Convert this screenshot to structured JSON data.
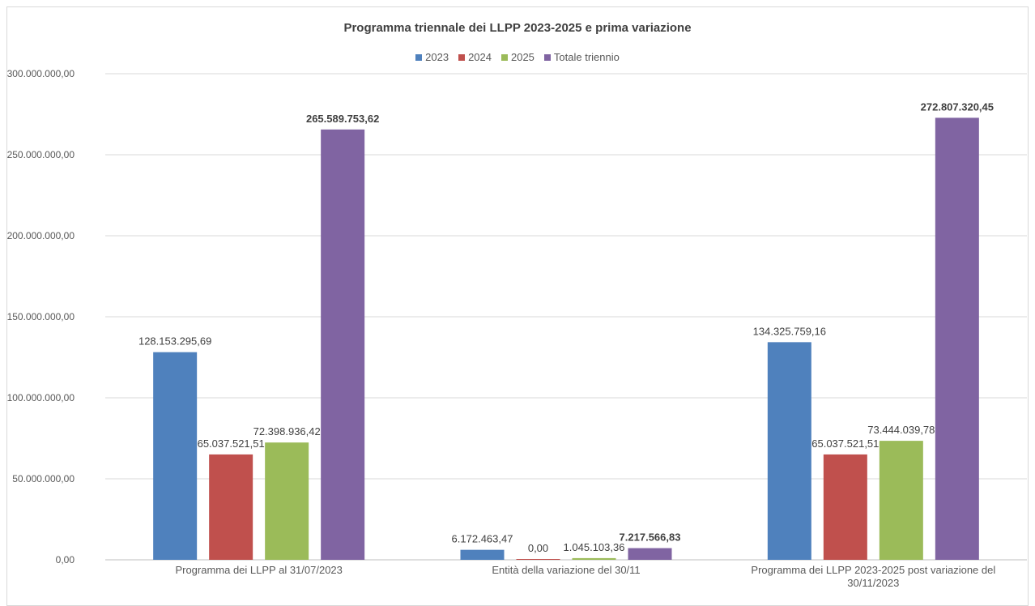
{
  "chart_data": {
    "type": "bar",
    "title": "Programma triennale dei LLPP 2023-2025 e prima variazione",
    "categories": [
      "Programma dei LLPP al 31/07/2023",
      "Entità della variazione del 30/11",
      "Programma dei LLPP 2023-2025 post variazione del 30/11/2023"
    ],
    "series": [
      {
        "name": "2023",
        "color": "#4f81bd",
        "values": [
          128153295.69,
          6172463.47,
          134325759.16
        ],
        "labels": [
          "128.153.295,69",
          "6.172.463,47",
          "134.325.759,16"
        ]
      },
      {
        "name": "2024",
        "color": "#c0504d",
        "values": [
          65037521.51,
          0.0,
          65037521.51
        ],
        "labels": [
          "65.037.521,51",
          "0,00",
          "65.037.521,51"
        ]
      },
      {
        "name": "2025",
        "color": "#9bbb59",
        "values": [
          72398936.42,
          1045103.36,
          73444039.78
        ],
        "labels": [
          "72.398.936,42",
          "1.045.103,36",
          "73.444.039,78"
        ]
      },
      {
        "name": "Totale triennio",
        "color": "#8064a2",
        "values": [
          265589753.62,
          7217566.83,
          272807320.45
        ],
        "labels": [
          "265.589.753,62",
          "7.217.566,83",
          "272.807.320,45"
        ],
        "bold_labels": true
      }
    ],
    "ylim": [
      0,
      300000000
    ],
    "yticks": [
      0,
      50000000,
      100000000,
      150000000,
      200000000,
      250000000,
      300000000
    ],
    "ytick_labels": [
      "0,00",
      "50.000.000,00",
      "100.000.000,00",
      "150.000.000,00",
      "200.000.000,00",
      "250.000.000,00",
      "300.000.000,00"
    ],
    "grid": true,
    "legend_position": "top"
  }
}
